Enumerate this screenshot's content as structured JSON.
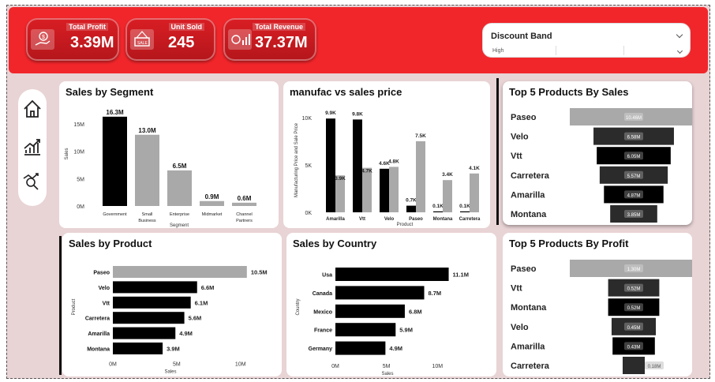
{
  "kpis": [
    {
      "label": "Total Profit",
      "value": "3.39M",
      "icon": "money-hand-icon"
    },
    {
      "label": "Unit Sold",
      "value": "245",
      "icon": "sale-sign-icon"
    },
    {
      "label": "Total Revenue",
      "value": "37.37M",
      "icon": "revenue-growth-icon"
    }
  ],
  "slicer": {
    "title": "Discount Band",
    "value": "High"
  },
  "nav": {
    "icons": [
      "home-icon",
      "growth-chart-icon",
      "analytics-icon"
    ]
  },
  "colors": {
    "brand": "#f1262b",
    "black": "#000000",
    "gray": "#a9a9a9"
  },
  "charts": {
    "segment": {
      "title": "Sales by Segment",
      "chart_data": {
        "type": "bar",
        "categories": [
          "Government",
          "Small Business",
          "Enterprise",
          "Midmarket",
          "Channel Partners"
        ],
        "values": [
          16.3,
          13.0,
          6.5,
          0.9,
          0.6
        ],
        "labels": [
          "16.3M",
          "13.0M",
          "6.5M",
          "0.9M",
          "0.6M"
        ],
        "yticks": [
          "0M",
          "5M",
          "10M",
          "15M"
        ],
        "ylim": [
          0,
          17
        ],
        "xlabel": "Segment",
        "ylabel": "Sales"
      }
    },
    "manufac": {
      "title": "manufac vs sales price",
      "chart_data": {
        "type": "bar",
        "categories": [
          "Amarilla",
          "Vtt",
          "Velo",
          "Paseo",
          "Montana",
          "Carretera"
        ],
        "series": [
          {
            "values": [
              9.9,
              9.8,
              4.6,
              0.7,
              0.1,
              0.1
            ],
            "labels": [
              "9.9K",
              "9.8K",
              "4.6K",
              "0.7K",
              "0.1K",
              "0.1K"
            ]
          },
          {
            "values": [
              3.9,
              4.7,
              4.8,
              7.5,
              3.4,
              4.1
            ],
            "labels": [
              "3.9K",
              "4.7K",
              "4.8K",
              "7.5K",
              "3.4K",
              "4.1K"
            ]
          }
        ],
        "yticks": [
          "0K",
          "5K",
          "10K"
        ],
        "ylim": [
          0,
          11
        ],
        "xlabel": "Product",
        "ylabel": "Manufacturing Price and Sale Price"
      }
    },
    "top5sales": {
      "title": "Top 5 Products By Sales",
      "chart_data": {
        "type": "bar",
        "categories": [
          "Paseo",
          "Velo",
          "Vtt",
          "Carretera",
          "Amarilla",
          "Montana"
        ],
        "values": [
          10.46,
          6.58,
          6.05,
          5.57,
          4.87,
          3.85
        ],
        "labels": [
          "10.46M",
          "6.58M",
          "6.05M",
          "5.57M",
          "4.87M",
          "3.85M"
        ]
      }
    },
    "product": {
      "title": "Sales by Product",
      "chart_data": {
        "type": "bar",
        "categories": [
          "Paseo",
          "Velo",
          "Vtt",
          "Carretera",
          "Amarilla",
          "Montana"
        ],
        "values": [
          10.5,
          6.6,
          6.1,
          5.6,
          4.9,
          3.9
        ],
        "labels": [
          "10.5M",
          "6.6M",
          "6.1M",
          "5.6M",
          "4.9M",
          "3.9M"
        ],
        "xticks": [
          "0M",
          "5M",
          "10M"
        ],
        "xlim": [
          0,
          11.5
        ],
        "xlabel": "Sales",
        "ylabel": "Product"
      }
    },
    "country": {
      "title": "Sales by Country",
      "chart_data": {
        "type": "bar",
        "categories": [
          "Usa",
          "Canada",
          "Mexico",
          "France",
          "Germany"
        ],
        "values": [
          11.1,
          8.7,
          6.8,
          5.9,
          4.9
        ],
        "labels": [
          "11.1M",
          "8.7M",
          "6.8M",
          "5.9M",
          "4.9M"
        ],
        "xticks": [
          "0M",
          "5M",
          "10M"
        ],
        "xlim": [
          0,
          13.3
        ],
        "xlabel": "Sales",
        "ylabel": "Country"
      }
    },
    "top5profit": {
      "title": "Top 5 Products By Profit",
      "chart_data": {
        "type": "bar",
        "categories": [
          "Paseo",
          "Vtt",
          "Montana",
          "Velo",
          "Amarilla",
          "Carretera"
        ],
        "values": [
          1.3,
          0.52,
          0.52,
          0.45,
          0.43,
          0.18
        ],
        "labels": [
          "1.30M",
          "0.52M",
          "0.52M",
          "0.45M",
          "0.43M",
          "0.18M"
        ]
      }
    }
  }
}
